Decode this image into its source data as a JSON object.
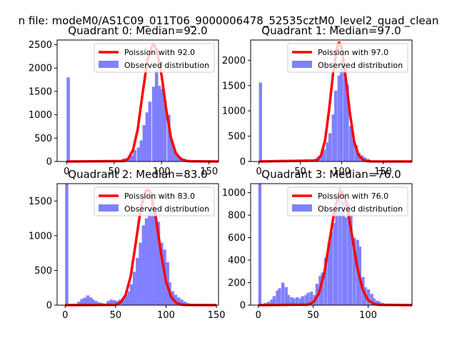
{
  "figure_title": "n file: modeM0/AS1C09_011T06_9000006478_52535cztM0_level2_quad_clean",
  "colors": {
    "fit": "#ff0000",
    "hist": "#8080ff",
    "axis": "#000000",
    "background": "#ffffff"
  },
  "chart_data": [
    {
      "type": "bar",
      "title": "Quadrant 0: Median=92.0",
      "xlim": [
        -10,
        160
      ],
      "ylim": [
        0,
        2600
      ],
      "xticks": [
        0,
        50,
        100,
        150
      ],
      "yticks": [
        0,
        500,
        1000,
        1500,
        2000,
        2500
      ],
      "legend": {
        "position": "top-right",
        "fit_label": "Poission with 92.0",
        "hist_label": "Observed distribution"
      },
      "histogram": {
        "bin_width": 3.2,
        "bins": [
          {
            "x": 0,
            "y": 1800
          },
          {
            "x": 54,
            "y": 30
          },
          {
            "x": 58,
            "y": 60
          },
          {
            "x": 61,
            "y": 60
          },
          {
            "x": 64,
            "y": 100
          },
          {
            "x": 67,
            "y": 130
          },
          {
            "x": 70,
            "y": 250
          },
          {
            "x": 74,
            "y": 300
          },
          {
            "x": 77,
            "y": 450
          },
          {
            "x": 80,
            "y": 780
          },
          {
            "x": 83,
            "y": 1050
          },
          {
            "x": 86,
            "y": 1280
          },
          {
            "x": 90,
            "y": 1600
          },
          {
            "x": 93,
            "y": 1950
          },
          {
            "x": 96,
            "y": 1620
          },
          {
            "x": 99,
            "y": 1550
          },
          {
            "x": 102,
            "y": 1300
          },
          {
            "x": 106,
            "y": 1000
          },
          {
            "x": 109,
            "y": 460
          },
          {
            "x": 112,
            "y": 250
          },
          {
            "x": 115,
            "y": 130
          },
          {
            "x": 118,
            "y": 100
          },
          {
            "x": 122,
            "y": 60
          },
          {
            "x": 125,
            "y": 40
          },
          {
            "x": 128,
            "y": 30
          },
          {
            "x": 131,
            "y": 20
          },
          {
            "x": 134,
            "y": 10
          },
          {
            "x": 138,
            "y": 8
          }
        ]
      },
      "fit_curve": {
        "x": [
          0,
          60,
          65,
          70,
          75,
          80,
          85,
          90,
          92,
          95,
          100,
          105,
          110,
          115,
          120,
          125,
          130,
          160
        ],
        "y": [
          0,
          10,
          60,
          250,
          700,
          1450,
          2150,
          2480,
          2500,
          2380,
          1850,
          1100,
          500,
          180,
          60,
          15,
          5,
          0
        ]
      }
    },
    {
      "type": "bar",
      "title": "Quadrant 1: Median=97.0",
      "xlim": [
        -10,
        185
      ],
      "ylim": [
        0,
        2400
      ],
      "xticks": [
        0,
        50,
        100,
        150
      ],
      "yticks": [
        0,
        500,
        1000,
        1500,
        2000
      ],
      "legend": {
        "position": "top-right",
        "fit_label": "Poission with 97.0",
        "hist_label": "Observed distribution"
      },
      "histogram": {
        "bin_width": 3.5,
        "bins": [
          {
            "x": 0,
            "y": 1560
          },
          {
            "x": 18,
            "y": 20
          },
          {
            "x": 56,
            "y": 20
          },
          {
            "x": 63,
            "y": 40
          },
          {
            "x": 67,
            "y": 60
          },
          {
            "x": 70,
            "y": 100
          },
          {
            "x": 74,
            "y": 140
          },
          {
            "x": 77,
            "y": 240
          },
          {
            "x": 81,
            "y": 380
          },
          {
            "x": 84,
            "y": 560
          },
          {
            "x": 88,
            "y": 930
          },
          {
            "x": 91,
            "y": 1400
          },
          {
            "x": 95,
            "y": 1700
          },
          {
            "x": 98,
            "y": 2000
          },
          {
            "x": 102,
            "y": 1950
          },
          {
            "x": 105,
            "y": 1520
          },
          {
            "x": 109,
            "y": 700
          },
          {
            "x": 112,
            "y": 430
          },
          {
            "x": 116,
            "y": 320
          },
          {
            "x": 119,
            "y": 170
          },
          {
            "x": 123,
            "y": 120
          },
          {
            "x": 126,
            "y": 80
          },
          {
            "x": 130,
            "y": 50
          },
          {
            "x": 133,
            "y": 30
          },
          {
            "x": 137,
            "y": 20
          }
        ]
      },
      "fit_curve": {
        "x": [
          0,
          70,
          75,
          80,
          85,
          90,
          95,
          97,
          100,
          105,
          110,
          115,
          120,
          125,
          130,
          135,
          185
        ],
        "y": [
          0,
          20,
          120,
          420,
          1050,
          1800,
          2300,
          2350,
          2250,
          1650,
          950,
          400,
          140,
          40,
          10,
          2,
          0
        ]
      }
    },
    {
      "type": "bar",
      "title": "Quadrant 2: Median=83.0",
      "xlim": [
        -8,
        152
      ],
      "ylim": [
        0,
        1750
      ],
      "xticks": [
        0,
        50,
        100,
        150
      ],
      "yticks": [
        0,
        500,
        1000,
        1500
      ],
      "legend": {
        "position": "top-right",
        "fit_label": "Poission with 83.0",
        "hist_label": "Observed distribution"
      },
      "histogram": {
        "bin_width": 2.9,
        "bins": [
          {
            "x": 0,
            "y": 1750
          },
          {
            "x": 12,
            "y": 50
          },
          {
            "x": 15,
            "y": 90
          },
          {
            "x": 18,
            "y": 110
          },
          {
            "x": 21,
            "y": 140
          },
          {
            "x": 24,
            "y": 110
          },
          {
            "x": 26,
            "y": 80
          },
          {
            "x": 29,
            "y": 60
          },
          {
            "x": 32,
            "y": 40
          },
          {
            "x": 35,
            "y": 30
          },
          {
            "x": 41,
            "y": 60
          },
          {
            "x": 44,
            "y": 80
          },
          {
            "x": 47,
            "y": 70
          },
          {
            "x": 50,
            "y": 60
          },
          {
            "x": 53,
            "y": 80
          },
          {
            "x": 56,
            "y": 100
          },
          {
            "x": 59,
            "y": 150
          },
          {
            "x": 62,
            "y": 200
          },
          {
            "x": 64,
            "y": 300
          },
          {
            "x": 67,
            "y": 480
          },
          {
            "x": 70,
            "y": 680
          },
          {
            "x": 73,
            "y": 900
          },
          {
            "x": 76,
            "y": 1150
          },
          {
            "x": 79,
            "y": 1250
          },
          {
            "x": 82,
            "y": 1390
          },
          {
            "x": 85,
            "y": 1550
          },
          {
            "x": 88,
            "y": 1400
          },
          {
            "x": 91,
            "y": 1200
          },
          {
            "x": 94,
            "y": 900
          },
          {
            "x": 97,
            "y": 800
          },
          {
            "x": 100,
            "y": 620
          },
          {
            "x": 102,
            "y": 330
          },
          {
            "x": 105,
            "y": 200
          },
          {
            "x": 108,
            "y": 150
          },
          {
            "x": 111,
            "y": 110
          },
          {
            "x": 114,
            "y": 80
          },
          {
            "x": 117,
            "y": 50
          },
          {
            "x": 120,
            "y": 30
          },
          {
            "x": 123,
            "y": 20
          }
        ]
      },
      "fit_curve": {
        "x": [
          0,
          50,
          55,
          60,
          65,
          70,
          75,
          80,
          83,
          85,
          90,
          95,
          100,
          105,
          110,
          115,
          120,
          150
        ],
        "y": [
          0,
          5,
          40,
          150,
          420,
          900,
          1400,
          1650,
          1660,
          1600,
          1250,
          750,
          340,
          120,
          35,
          8,
          2,
          0
        ]
      }
    },
    {
      "type": "bar",
      "title": "Quadrant 3: Median=76.0",
      "xlim": [
        -7,
        140
      ],
      "ylim": [
        0,
        1080
      ],
      "xticks": [
        0,
        50,
        100
      ],
      "yticks": [
        0,
        200,
        400,
        600,
        800,
        1000
      ],
      "legend": {
        "position": "top-right",
        "fit_label": "Poission with 76.0",
        "hist_label": "Observed distribution"
      },
      "histogram": {
        "bin_width": 2.6,
        "bins": [
          {
            "x": 0,
            "y": 1080
          },
          {
            "x": 3,
            "y": 10
          },
          {
            "x": 5,
            "y": 20
          },
          {
            "x": 8,
            "y": 30
          },
          {
            "x": 11,
            "y": 50
          },
          {
            "x": 13,
            "y": 80
          },
          {
            "x": 16,
            "y": 130
          },
          {
            "x": 18,
            "y": 150
          },
          {
            "x": 21,
            "y": 200
          },
          {
            "x": 24,
            "y": 160
          },
          {
            "x": 26,
            "y": 90
          },
          {
            "x": 29,
            "y": 70
          },
          {
            "x": 31,
            "y": 60
          },
          {
            "x": 34,
            "y": 70
          },
          {
            "x": 37,
            "y": 60
          },
          {
            "x": 39,
            "y": 80
          },
          {
            "x": 42,
            "y": 90
          },
          {
            "x": 44,
            "y": 110
          },
          {
            "x": 47,
            "y": 120
          },
          {
            "x": 50,
            "y": 90
          },
          {
            "x": 52,
            "y": 190
          },
          {
            "x": 55,
            "y": 260
          },
          {
            "x": 57,
            "y": 290
          },
          {
            "x": 60,
            "y": 420
          },
          {
            "x": 63,
            "y": 560
          },
          {
            "x": 65,
            "y": 650
          },
          {
            "x": 68,
            "y": 730
          },
          {
            "x": 70,
            "y": 820
          },
          {
            "x": 73,
            "y": 1050
          },
          {
            "x": 76,
            "y": 920
          },
          {
            "x": 78,
            "y": 780
          },
          {
            "x": 81,
            "y": 900
          },
          {
            "x": 83,
            "y": 800
          },
          {
            "x": 86,
            "y": 600
          },
          {
            "x": 89,
            "y": 580
          },
          {
            "x": 91,
            "y": 520
          },
          {
            "x": 94,
            "y": 250
          },
          {
            "x": 96,
            "y": 160
          },
          {
            "x": 99,
            "y": 140
          },
          {
            "x": 102,
            "y": 100
          },
          {
            "x": 104,
            "y": 60
          },
          {
            "x": 107,
            "y": 40
          },
          {
            "x": 109,
            "y": 30
          },
          {
            "x": 112,
            "y": 20
          },
          {
            "x": 115,
            "y": 10
          }
        ]
      },
      "fit_curve": {
        "x": [
          0,
          45,
          50,
          55,
          60,
          65,
          70,
          75,
          76,
          80,
          85,
          90,
          95,
          100,
          105,
          110,
          140
        ],
        "y": [
          0,
          5,
          25,
          100,
          280,
          580,
          880,
          1010,
          1010,
          920,
          640,
          340,
          140,
          45,
          12,
          3,
          0
        ]
      }
    }
  ]
}
